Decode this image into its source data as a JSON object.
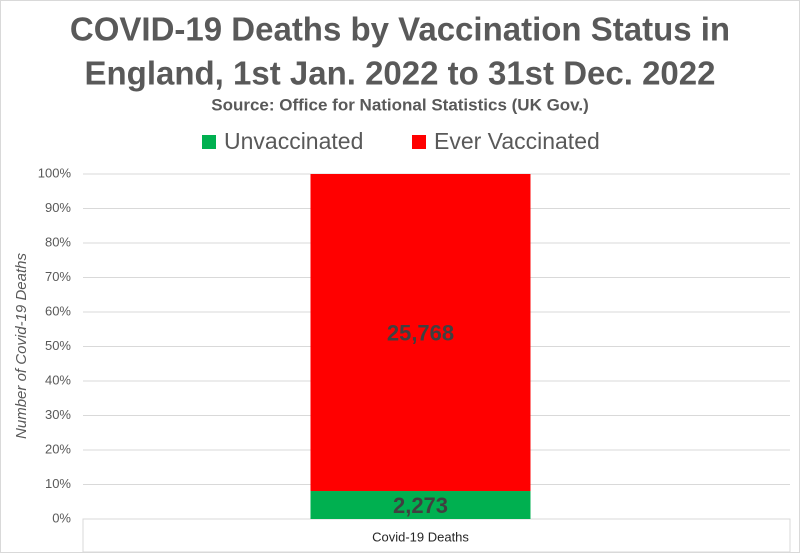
{
  "chart_data": {
    "type": "percent_stacked_bar",
    "title": [
      "COVID-19 Deaths by Vaccination Status in",
      "England, 1st Jan. 2022 to 31st Dec. 2022"
    ],
    "subtitle": "Source: Office for National Statistics (UK Gov.)",
    "y_label": "Number of Covid-19 Deaths",
    "categories": [
      "Covid-19 Deaths"
    ],
    "series": [
      {
        "name": "Unvaccinated",
        "color": "#00b050",
        "values": [
          2273
        ],
        "value_labels": [
          "2,273"
        ]
      },
      {
        "name": "Ever Vaccinated",
        "color": "#ff0000",
        "values": [
          25768
        ],
        "value_labels": [
          "25,768"
        ]
      }
    ],
    "ylim": [
      0,
      100
    ],
    "yticks": [
      {
        "value": 0,
        "label": "0%"
      },
      {
        "value": 10,
        "label": "10%"
      },
      {
        "value": 20,
        "label": "20%"
      },
      {
        "value": 30,
        "label": "30%"
      },
      {
        "value": 40,
        "label": "40%"
      },
      {
        "value": 50,
        "label": "50%"
      },
      {
        "value": 60,
        "label": "60%"
      },
      {
        "value": 70,
        "label": "70%"
      },
      {
        "value": 80,
        "label": "80%"
      },
      {
        "value": 90,
        "label": "90%"
      },
      {
        "value": 100,
        "label": "100%"
      }
    ],
    "grid": true
  }
}
